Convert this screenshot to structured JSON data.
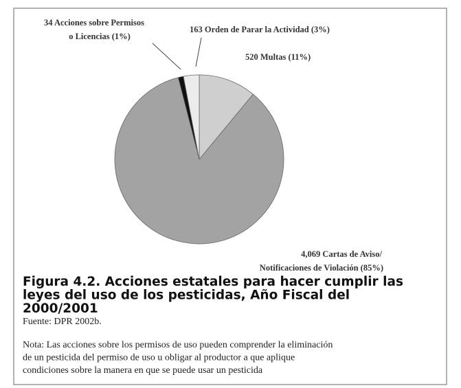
{
  "chart_data": {
    "type": "pie",
    "categories": [
      [
        "520 Multas (11%)"
      ],
      [
        "4,069 Cartas de Aviso/",
        "Notificaciones de Violación (85%)"
      ],
      [
        "34 Acciones sobre Permisos",
        "o Licencias (1%)"
      ],
      [
        "163 Orden de Parar la Actividad (3%)"
      ]
    ],
    "values": [
      11,
      85,
      1,
      3
    ],
    "colors": [
      "#cfcfcf",
      "#a3a3a3",
      "#111111",
      "#ececec"
    ]
  },
  "caption": {
    "title_lines": [
      "Figura 4.2. Acciones estatales para hacer cumplir las",
      "leyes del uso de los pesticidas, Año Fiscal del",
      "2000/2001"
    ],
    "source": "Fuente: DPR 2002b.",
    "note_lines": [
      "Nota: Las acciones sobre los permisos de uso pueden comprender la eliminación",
      "de un pesticida del permiso de uso u obligar al productor a que aplique",
      "condiciones sobre la manera en que se puede usar un pesticida"
    ]
  }
}
